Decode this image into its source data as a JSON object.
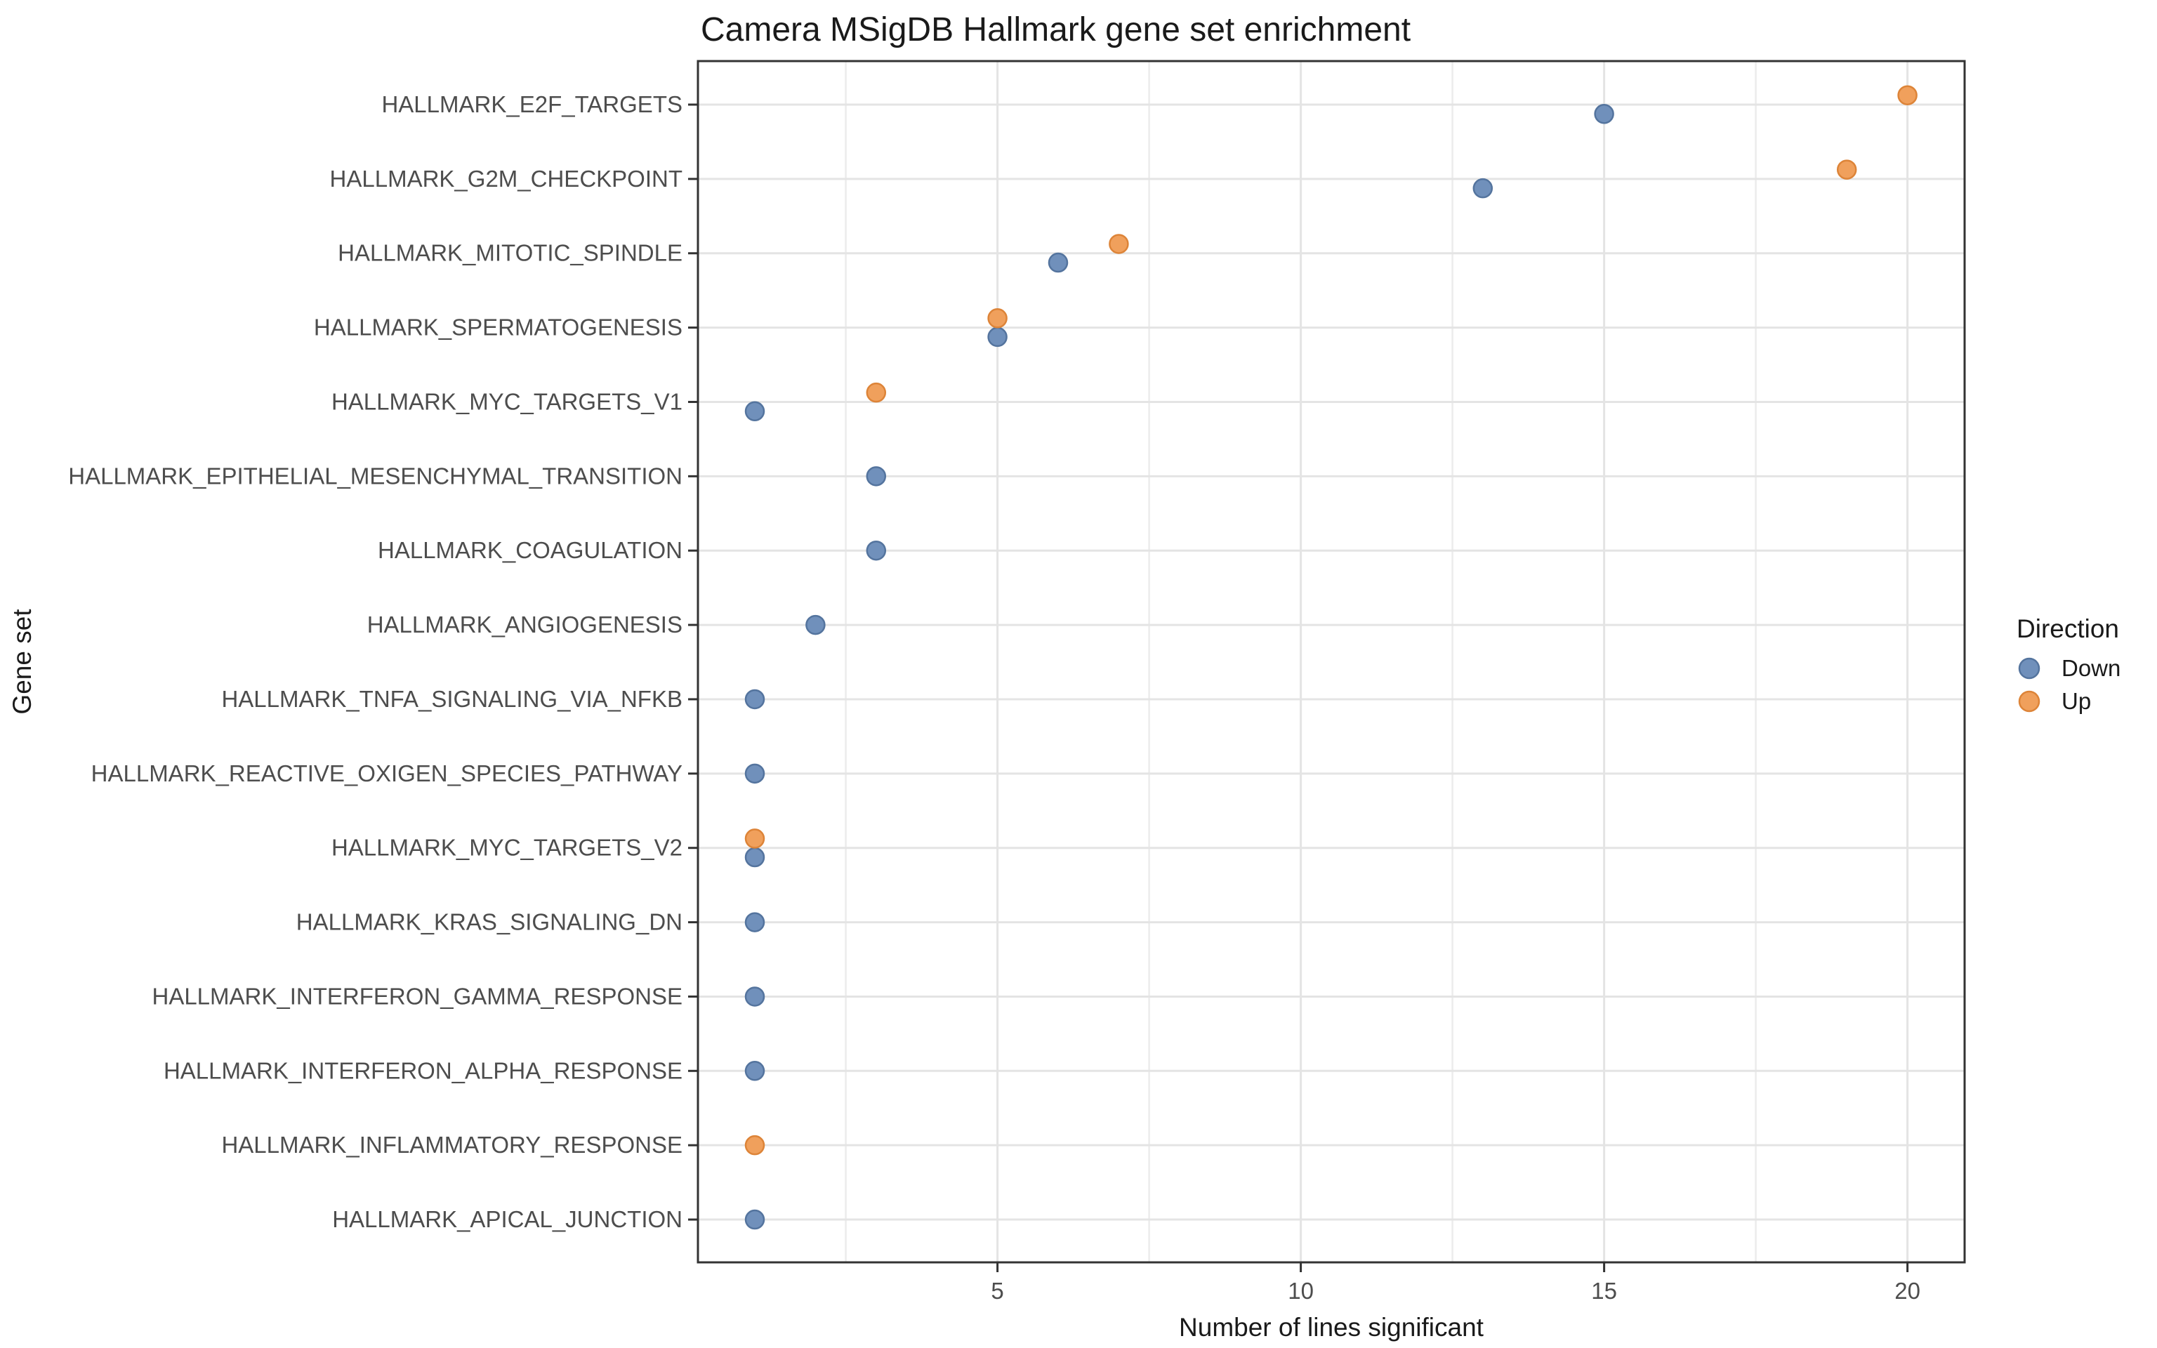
{
  "title": "Camera MSigDB Hallmark gene set enrichment",
  "chart_data": {
    "type": "scatter",
    "subtype": "horizontal-dot-plot",
    "title": "Camera MSigDB Hallmark gene set enrichment",
    "xlabel": "Number of lines significant",
    "ylabel": "Gene set",
    "xlim": [
      0.05,
      20.95
    ],
    "x_major_ticks": [
      5,
      10,
      15,
      20
    ],
    "x_minor_gridlines": [
      2.5,
      7.5,
      12.5,
      17.5
    ],
    "grid": "on",
    "categories": [
      "HALLMARK_E2F_TARGETS",
      "HALLMARK_G2M_CHECKPOINT",
      "HALLMARK_MITOTIC_SPINDLE",
      "HALLMARK_SPERMATOGENESIS",
      "HALLMARK_MYC_TARGETS_V1",
      "HALLMARK_EPITHELIAL_MESENCHYMAL_TRANSITION",
      "HALLMARK_COAGULATION",
      "HALLMARK_ANGIOGENESIS",
      "HALLMARK_TNFA_SIGNALING_VIA_NFKB",
      "HALLMARK_REACTIVE_OXIGEN_SPECIES_PATHWAY",
      "HALLMARK_MYC_TARGETS_V2",
      "HALLMARK_KRAS_SIGNALING_DN",
      "HALLMARK_INTERFERON_GAMMA_RESPONSE",
      "HALLMARK_INTERFERON_ALPHA_RESPONSE",
      "HALLMARK_INFLAMMATORY_RESPONSE",
      "HALLMARK_APICAL_JUNCTION"
    ],
    "series": [
      {
        "name": "Down",
        "color": "#7090BB",
        "stroke": "#54749E",
        "values": [
          15,
          13,
          6,
          5,
          1,
          3,
          3,
          2,
          1,
          1,
          1,
          1,
          1,
          1,
          null,
          1
        ]
      },
      {
        "name": "Up",
        "color": "#F0A05C",
        "stroke": "#DD8438",
        "values": [
          20,
          19,
          7,
          5,
          3,
          null,
          null,
          null,
          null,
          null,
          1,
          null,
          null,
          null,
          1,
          null
        ]
      }
    ],
    "legend": {
      "title": "Direction",
      "position": "right",
      "entries": [
        "Down",
        "Up"
      ]
    }
  },
  "colors": {
    "background": "#ffffff",
    "panel_background": "#ffffff",
    "panel_border": "#333333",
    "grid_major": "#e4e4e4",
    "grid_minor": "#ececec",
    "tick_mark": "#333333",
    "tick_label": "#4d4d4d",
    "title_text": "#1a1a1a"
  }
}
